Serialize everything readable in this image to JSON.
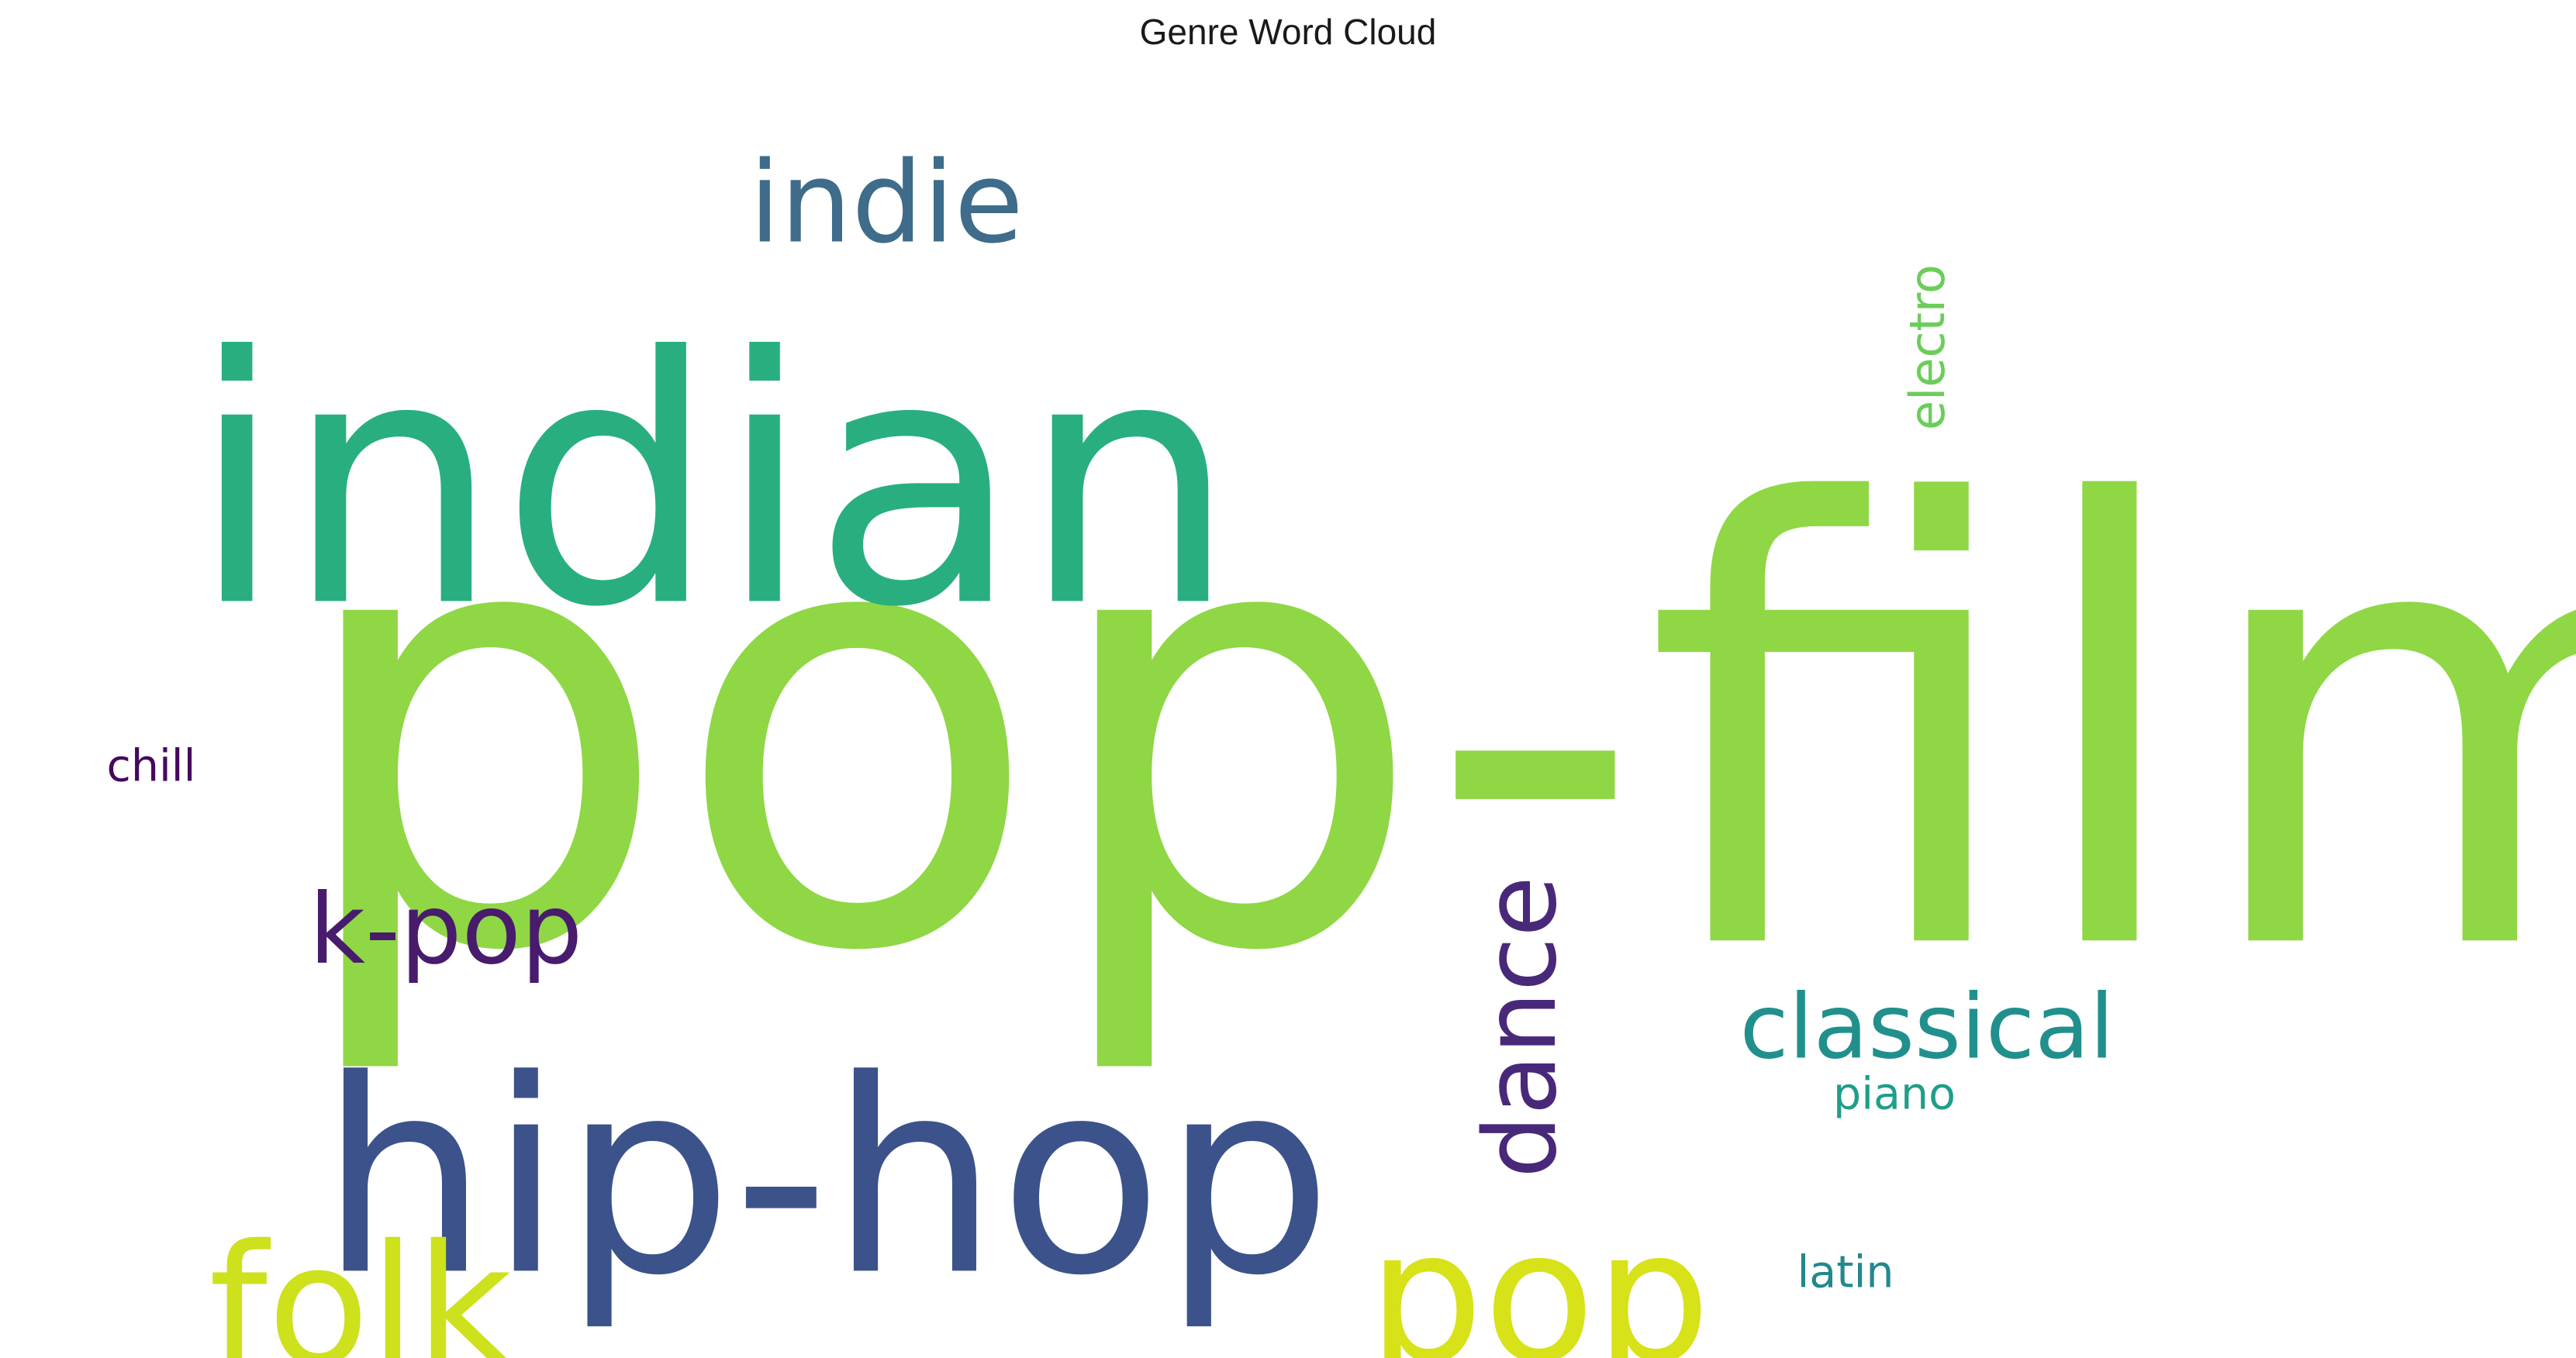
{
  "chart_data": {
    "type": "wordcloud",
    "title": "Genre Word Cloud",
    "words": [
      {
        "text": "pop-film",
        "weight": 1.0,
        "color": "#8fd744"
      },
      {
        "text": "indian",
        "weight": 0.57,
        "color": "#29af7f"
      },
      {
        "text": "hip-hop",
        "weight": 0.45,
        "color": "#3b528b"
      },
      {
        "text": "pop",
        "weight": 0.31,
        "color": "#d7e219"
      },
      {
        "text": "folk",
        "weight": 0.28,
        "color": "#cde11d"
      },
      {
        "text": "indie",
        "weight": 0.18,
        "color": "#3e6c8a"
      },
      {
        "text": "dance",
        "weight": 0.17,
        "color": "#482979"
      },
      {
        "text": "k-pop",
        "weight": 0.16,
        "color": "#481b6d"
      },
      {
        "text": "classical",
        "weight": 0.15,
        "color": "#21908d"
      },
      {
        "text": "electro",
        "weight": 0.085,
        "color": "#6ccd5a"
      },
      {
        "text": "chill",
        "weight": 0.08,
        "color": "#46085c"
      },
      {
        "text": "piano",
        "weight": 0.08,
        "color": "#1f9e89"
      },
      {
        "text": "latin",
        "weight": 0.08,
        "color": "#23888e"
      }
    ]
  }
}
